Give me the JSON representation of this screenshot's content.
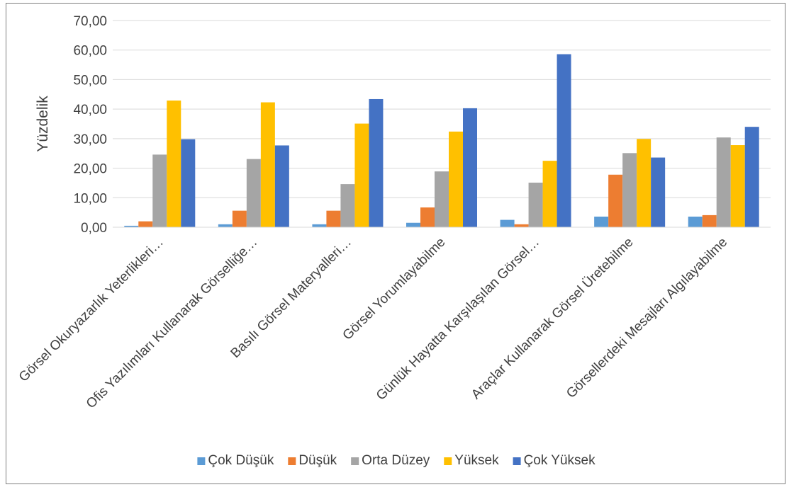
{
  "chart_data": {
    "type": "bar",
    "title": "",
    "xlabel": "",
    "ylabel": "Yüzdelik",
    "ylim": [
      0,
      70
    ],
    "ytick_step": 10,
    "ytick_labels": [
      "0,00",
      "10,00",
      "20,00",
      "30,00",
      "40,00",
      "50,00",
      "60,00",
      "70,00"
    ],
    "grid": "horizontal",
    "legend_position": "bottom",
    "categories": [
      "Görsel Okuryazarlık Yeterlikleri…",
      "Ofis Yazılımları Kullanarak Görselliğe…",
      "Basılı Görsel Materyalleri…",
      "Görsel Yorumlayabilme",
      "Günlük Hayatta Karşılaşılan Görsel…",
      "Araçlar Kullanarak Görsel Üretebilme",
      "Görsellerdeki Mesajları Algılayabilme"
    ],
    "series": [
      {
        "name": "Çok Düşük",
        "color": "#5B9BD5",
        "values": [
          0.5,
          1.0,
          1.0,
          1.5,
          2.5,
          3.6,
          3.6
        ]
      },
      {
        "name": "Düşük",
        "color": "#ED7D31",
        "values": [
          2.0,
          5.6,
          5.6,
          6.7,
          1.0,
          17.8,
          4.1
        ]
      },
      {
        "name": "Orta Düzey",
        "color": "#A5A5A5",
        "values": [
          24.6,
          23.1,
          14.6,
          18.9,
          15.1,
          25.1,
          30.4
        ]
      },
      {
        "name": "Yüksek",
        "color": "#FFC000",
        "values": [
          42.9,
          42.3,
          35.1,
          32.4,
          22.5,
          29.9,
          27.8
        ]
      },
      {
        "name": "Çok Yüksek",
        "color": "#4472C4",
        "values": [
          29.8,
          27.7,
          43.4,
          40.3,
          58.6,
          23.6,
          34.0
        ]
      }
    ]
  }
}
